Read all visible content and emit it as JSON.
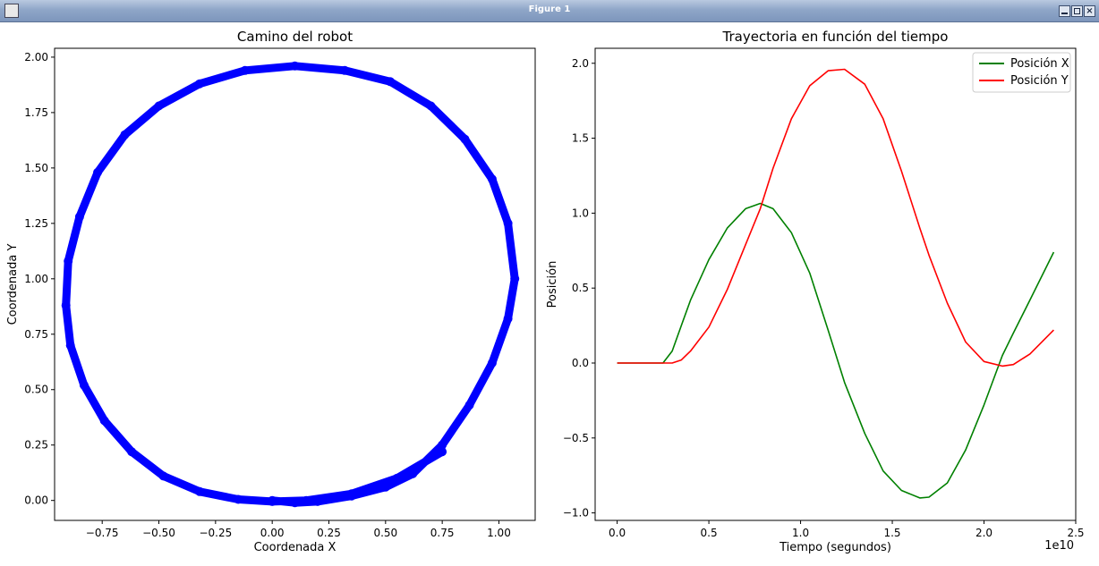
{
  "window": {
    "title": "Figure 1",
    "icon": "figure-icon"
  },
  "chart_data": [
    {
      "type": "scatter",
      "title": "Camino del robot",
      "xlabel": "Coordenada X",
      "ylabel": "Coordenada Y",
      "xlim": [
        -0.96,
        1.16
      ],
      "ylim": [
        -0.09,
        2.04
      ],
      "xticks": [
        -0.75,
        -0.5,
        -0.25,
        0.0,
        0.25,
        0.5,
        0.75,
        1.0
      ],
      "xtick_labels": [
        "−0.75",
        "−0.50",
        "−0.25",
        "0.00",
        "0.25",
        "0.50",
        "0.75",
        "1.00"
      ],
      "yticks": [
        0.0,
        0.25,
        0.5,
        0.75,
        1.0,
        1.25,
        1.5,
        1.75,
        2.0
      ],
      "ytick_labels": [
        "0.00",
        "0.25",
        "0.50",
        "0.75",
        "1.00",
        "1.25",
        "1.50",
        "1.75",
        "2.00"
      ],
      "color": "#0000ff",
      "series": [
        {
          "x": [
            0.0,
            0.1,
            0.2,
            0.35,
            0.5,
            0.62,
            0.75,
            0.87,
            0.97,
            1.04,
            1.07,
            1.04,
            0.97,
            0.85,
            0.7,
            0.52,
            0.32,
            0.1,
            -0.12,
            -0.32,
            -0.5,
            -0.65,
            -0.77,
            -0.85,
            -0.9,
            -0.91,
            -0.89,
            -0.83,
            -0.74,
            -0.62,
            -0.48,
            -0.32,
            -0.15,
            0.0,
            0.15,
            0.35,
            0.55,
            0.75
          ],
          "y": [
            0.0,
            -0.01,
            -0.005,
            0.02,
            0.06,
            0.12,
            0.25,
            0.43,
            0.62,
            0.82,
            1.0,
            1.25,
            1.45,
            1.63,
            1.78,
            1.89,
            1.94,
            1.96,
            1.94,
            1.88,
            1.78,
            1.65,
            1.48,
            1.28,
            1.08,
            0.88,
            0.7,
            0.52,
            0.36,
            0.22,
            0.11,
            0.04,
            0.005,
            -0.005,
            0.0,
            0.03,
            0.1,
            0.22
          ]
        }
      ]
    },
    {
      "type": "line",
      "title": "Trayectoria en función del tiempo",
      "xlabel": "Tiempo (segundos)",
      "ylabel": "Posición",
      "x_offset_text": "1e10",
      "xlim": [
        -0.12,
        2.5
      ],
      "ylim": [
        -1.05,
        2.1
      ],
      "xticks": [
        0.0,
        0.5,
        1.0,
        1.5,
        2.0,
        2.5
      ],
      "xtick_labels": [
        "0.0",
        "0.5",
        "1.0",
        "1.5",
        "2.0",
        "2.5"
      ],
      "yticks": [
        -1.0,
        -0.5,
        0.0,
        0.5,
        1.0,
        1.5,
        2.0
      ],
      "ytick_labels": [
        "−1.0",
        "−0.5",
        "0.0",
        "0.5",
        "1.0",
        "1.5",
        "2.0"
      ],
      "legend_position": "top-right",
      "x": [
        0.0,
        0.1,
        0.2,
        0.25,
        0.3,
        0.35,
        0.4,
        0.5,
        0.6,
        0.7,
        0.78,
        0.85,
        0.95,
        1.05,
        1.15,
        1.24,
        1.35,
        1.45,
        1.55,
        1.65,
        1.7,
        1.8,
        1.9,
        2.0,
        2.1,
        2.16,
        2.25,
        2.38
      ],
      "series": [
        {
          "name": "Posición X",
          "color": "#008000",
          "values": [
            0.0,
            0.0,
            0.0,
            0.0,
            0.08,
            0.25,
            0.42,
            0.69,
            0.9,
            1.03,
            1.065,
            1.03,
            0.87,
            0.6,
            0.22,
            -0.13,
            -0.47,
            -0.72,
            -0.85,
            -0.9,
            -0.895,
            -0.8,
            -0.58,
            -0.28,
            0.05,
            0.2,
            0.42,
            0.74
          ]
        },
        {
          "name": "Posición Y",
          "color": "#ff0000",
          "values": [
            0.0,
            0.0,
            0.0,
            0.0,
            0.0,
            0.02,
            0.08,
            0.24,
            0.49,
            0.79,
            1.03,
            1.3,
            1.63,
            1.85,
            1.95,
            1.96,
            1.86,
            1.63,
            1.28,
            0.9,
            0.72,
            0.4,
            0.14,
            0.01,
            -0.02,
            -0.01,
            0.06,
            0.22
          ]
        }
      ]
    }
  ]
}
